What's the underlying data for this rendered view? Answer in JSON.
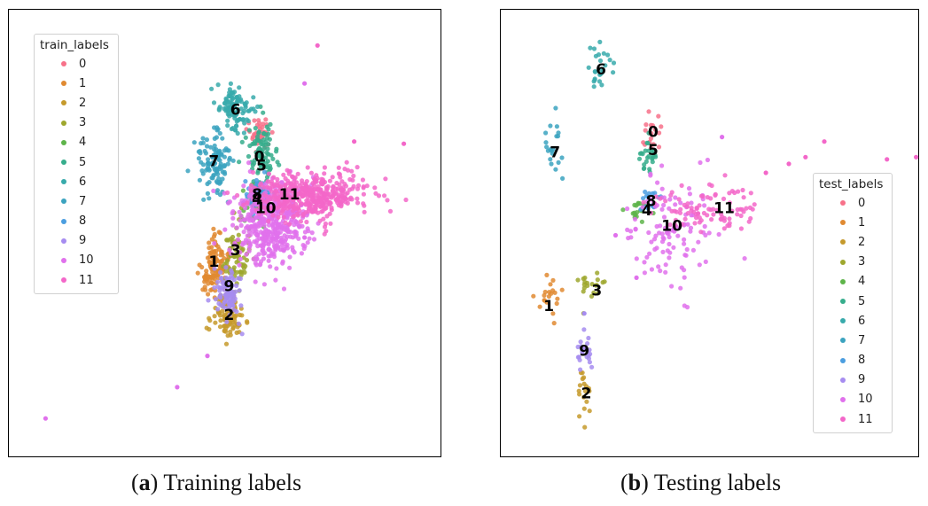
{
  "chart_data": [
    {
      "type": "scatter",
      "panel": "a",
      "legend_title": "train_labels",
      "legend_placement": "top-left",
      "xlim": [
        0,
        100
      ],
      "ylim": [
        0,
        100
      ],
      "grid": false,
      "series": [
        {
          "name": "0",
          "color": "#f77189",
          "center": [
            58.0,
            71.5
          ],
          "spread": [
            1.5,
            2.0
          ],
          "n": 40
        },
        {
          "name": "1",
          "color": "#e08a31",
          "center": [
            47.5,
            42.5
          ],
          "spread": [
            1.6,
            3.5
          ],
          "n": 120
        },
        {
          "name": "2",
          "color": "#c59a2c",
          "center": [
            50.5,
            31.5
          ],
          "spread": [
            1.8,
            2.5
          ],
          "n": 90
        },
        {
          "name": "3",
          "color": "#9ea72e",
          "center": [
            52.5,
            45.0
          ],
          "spread": [
            1.6,
            3.5
          ],
          "n": 70
        },
        {
          "name": "4",
          "color": "#5eb44a",
          "center": [
            57.0,
            57.0
          ],
          "spread": [
            1.5,
            2.5
          ],
          "n": 40
        },
        {
          "name": "5",
          "color": "#36ad8c",
          "center": [
            58.5,
            68.0
          ],
          "spread": [
            1.8,
            3.5
          ],
          "n": 90
        },
        {
          "name": "6",
          "color": "#38aaab",
          "center": [
            52.5,
            77.5
          ],
          "spread": [
            1.8,
            2.8
          ],
          "n": 110
        },
        {
          "name": "7",
          "color": "#3ba3bf",
          "center": [
            47.5,
            65.5
          ],
          "spread": [
            2.0,
            3.5
          ],
          "n": 110
        },
        {
          "name": "8",
          "color": "#4b9ee0",
          "center": [
            58.0,
            58.5
          ],
          "spread": [
            1.5,
            2.0
          ],
          "n": 50
        },
        {
          "name": "9",
          "color": "#a68cf0",
          "center": [
            51.0,
            36.5
          ],
          "spread": [
            1.5,
            3.0
          ],
          "n": 90
        },
        {
          "name": "10",
          "color": "#e071ec",
          "center": [
            60.5,
            52.5
          ],
          "spread": [
            4.5,
            5.0
          ],
          "n": 450
        },
        {
          "name": "11",
          "color": "#f367c9",
          "center": [
            69.5,
            58.5
          ],
          "spread": [
            6.5,
            2.5
          ],
          "n": 450
        }
      ],
      "cluster_labels": [
        {
          "text": "0",
          "x": 58.0,
          "y": 67.0
        },
        {
          "text": "1",
          "x": 47.5,
          "y": 43.5
        },
        {
          "text": "2",
          "x": 51.0,
          "y": 31.5
        },
        {
          "text": "3",
          "x": 52.5,
          "y": 46.0
        },
        {
          "text": "4",
          "x": 57.5,
          "y": 57.5
        },
        {
          "text": "5",
          "x": 58.5,
          "y": 65.0
        },
        {
          "text": "6",
          "x": 52.5,
          "y": 77.5
        },
        {
          "text": "7",
          "x": 47.5,
          "y": 66.0
        },
        {
          "text": "8",
          "x": 57.5,
          "y": 58.5
        },
        {
          "text": "9",
          "x": 51.0,
          "y": 38.0
        },
        {
          "text": "10",
          "x": 59.5,
          "y": 55.5
        },
        {
          "text": "11",
          "x": 65.0,
          "y": 58.5
        }
      ],
      "outliers": [
        {
          "series": "11",
          "x": 71.5,
          "y": 92.0
        },
        {
          "series": "10",
          "x": 68.5,
          "y": 83.5
        },
        {
          "series": "11",
          "x": 91.5,
          "y": 70.0
        },
        {
          "series": "11",
          "x": 80.0,
          "y": 70.5
        },
        {
          "series": "6",
          "x": 53.5,
          "y": 75.5
        },
        {
          "series": "10",
          "x": 68.5,
          "y": 49.0
        },
        {
          "series": "10",
          "x": 46.0,
          "y": 22.5
        },
        {
          "series": "10",
          "x": 39.0,
          "y": 15.5
        },
        {
          "series": "10",
          "x": 8.5,
          "y": 8.5
        }
      ]
    },
    {
      "type": "scatter",
      "panel": "b",
      "legend_title": "test_labels",
      "legend_placement": "center-right",
      "xlim": [
        0,
        100
      ],
      "ylim": [
        0,
        100
      ],
      "grid": false,
      "series": [
        {
          "name": "0",
          "color": "#f77189",
          "center": [
            35.5,
            72.0
          ],
          "spread": [
            1.2,
            2.0
          ],
          "n": 18
        },
        {
          "name": "1",
          "color": "#e08a31",
          "center": [
            11.5,
            35.5
          ],
          "spread": [
            1.5,
            2.0
          ],
          "n": 20
        },
        {
          "name": "2",
          "color": "#c59a2c",
          "center": [
            20.0,
            13.5
          ],
          "spread": [
            0.8,
            3.0
          ],
          "n": 18
        },
        {
          "name": "3",
          "color": "#9ea72e",
          "center": [
            22.0,
            38.5
          ],
          "spread": [
            1.5,
            2.0
          ],
          "n": 20
        },
        {
          "name": "4",
          "color": "#5eb44a",
          "center": [
            32.5,
            55.0
          ],
          "spread": [
            1.8,
            1.2
          ],
          "n": 20
        },
        {
          "name": "5",
          "color": "#36ad8c",
          "center": [
            35.5,
            67.5
          ],
          "spread": [
            1.2,
            2.0
          ],
          "n": 25
        },
        {
          "name": "6",
          "color": "#38aaab",
          "center": [
            23.5,
            87.0
          ],
          "spread": [
            1.5,
            2.5
          ],
          "n": 25
        },
        {
          "name": "7",
          "color": "#3ba3bf",
          "center": [
            12.5,
            68.0
          ],
          "spread": [
            1.5,
            3.0
          ],
          "n": 20
        },
        {
          "name": "8",
          "color": "#4b9ee0",
          "center": [
            35.5,
            57.5
          ],
          "spread": [
            1.0,
            2.0
          ],
          "n": 15
        },
        {
          "name": "9",
          "color": "#a68cf0",
          "center": [
            20.0,
            23.0
          ],
          "spread": [
            1.3,
            2.0
          ],
          "n": 22
        },
        {
          "name": "10",
          "color": "#e071ec",
          "center": [
            40.0,
            50.5
          ],
          "spread": [
            6.0,
            6.0
          ],
          "n": 110
        },
        {
          "name": "11",
          "color": "#f367c9",
          "center": [
            50.5,
            55.5
          ],
          "spread": [
            7.0,
            2.5
          ],
          "n": 90
        }
      ],
      "cluster_labels": [
        {
          "text": "0",
          "x": 36.5,
          "y": 72.5
        },
        {
          "text": "1",
          "x": 11.5,
          "y": 33.5
        },
        {
          "text": "2",
          "x": 20.5,
          "y": 14.0
        },
        {
          "text": "3",
          "x": 23.0,
          "y": 37.0
        },
        {
          "text": "4",
          "x": 35.0,
          "y": 55.0
        },
        {
          "text": "5",
          "x": 36.5,
          "y": 68.5
        },
        {
          "text": "6",
          "x": 24.0,
          "y": 86.5
        },
        {
          "text": "7",
          "x": 13.0,
          "y": 68.0
        },
        {
          "text": "8",
          "x": 36.0,
          "y": 57.0
        },
        {
          "text": "9",
          "x": 20.0,
          "y": 23.5
        },
        {
          "text": "10",
          "x": 41.0,
          "y": 51.5
        },
        {
          "text": "11",
          "x": 53.5,
          "y": 55.5
        }
      ],
      "outliers": [
        {
          "series": "11",
          "x": 77.5,
          "y": 70.5
        },
        {
          "series": "11",
          "x": 73.0,
          "y": 67.0
        },
        {
          "series": "11",
          "x": 63.5,
          "y": 63.5
        },
        {
          "series": "11",
          "x": 69.0,
          "y": 65.5
        },
        {
          "series": "11",
          "x": 92.5,
          "y": 66.5
        },
        {
          "series": "11",
          "x": 99.5,
          "y": 67.0
        },
        {
          "series": "10",
          "x": 53.0,
          "y": 71.5
        },
        {
          "series": "10",
          "x": 27.5,
          "y": 49.5
        },
        {
          "series": "10",
          "x": 32.5,
          "y": 40.0
        },
        {
          "series": "9",
          "x": 20.0,
          "y": 32.0
        }
      ]
    }
  ],
  "captions": {
    "a_letter": "a",
    "a_text": " Training labels",
    "b_letter": "b",
    "b_text": " Testing labels"
  }
}
